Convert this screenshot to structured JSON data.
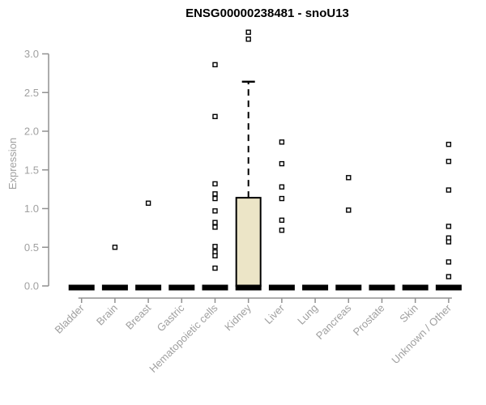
{
  "page": {
    "title": "ENSG00000238481 - snoU13"
  },
  "chart_data": {
    "type": "boxplot",
    "title": "ENSG00000238481 - snoU13",
    "xlabel": "",
    "ylabel": "Expression",
    "ylim": [
      0,
      3.3
    ],
    "yticks": [
      "0.0",
      "0.5",
      "1.0",
      "1.5",
      "2.0",
      "2.5",
      "3.0"
    ],
    "grid": false,
    "legend": "none",
    "categories": [
      "Bladder",
      "Brain",
      "Breast",
      "Gastric",
      "Hematopoietic cells",
      "Kidney",
      "Liver",
      "Lung",
      "Pancreas",
      "Prostate",
      "Skin",
      "Unknown / Other"
    ],
    "boxes": [
      {
        "category": "Bladder",
        "q1": 0,
        "median": 0,
        "q3": 0,
        "whisker_low": 0,
        "whisker_high": 0,
        "outliers": []
      },
      {
        "category": "Brain",
        "q1": 0,
        "median": 0,
        "q3": 0,
        "whisker_low": 0,
        "whisker_high": 0,
        "outliers": [
          0.5
        ]
      },
      {
        "category": "Breast",
        "q1": 0,
        "median": 0,
        "q3": 0,
        "whisker_low": 0,
        "whisker_high": 0,
        "outliers": [
          1.07
        ]
      },
      {
        "category": "Gastric",
        "q1": 0,
        "median": 0,
        "q3": 0,
        "whisker_low": 0,
        "whisker_high": 0,
        "outliers": []
      },
      {
        "category": "Hematopoietic cells",
        "q1": 0,
        "median": 0,
        "q3": 0,
        "whisker_low": 0,
        "whisker_high": 0,
        "outliers": [
          2.86,
          2.19,
          1.32,
          1.19,
          1.13,
          0.97,
          0.82,
          0.76,
          0.51,
          0.44,
          0.39,
          0.23
        ]
      },
      {
        "category": "Kidney",
        "q1": 0,
        "median": 0,
        "q3": 1.14,
        "whisker_low": 0,
        "whisker_high": 2.64,
        "outliers": [
          3.28,
          3.19
        ]
      },
      {
        "category": "Liver",
        "q1": 0,
        "median": 0,
        "q3": 0,
        "whisker_low": 0,
        "whisker_high": 0,
        "outliers": [
          1.86,
          1.58,
          1.28,
          1.13,
          0.85,
          0.72
        ]
      },
      {
        "category": "Lung",
        "q1": 0,
        "median": 0,
        "q3": 0,
        "whisker_low": 0,
        "whisker_high": 0,
        "outliers": []
      },
      {
        "category": "Pancreas",
        "q1": 0,
        "median": 0,
        "q3": 0,
        "whisker_low": 0,
        "whisker_high": 0,
        "outliers": [
          1.4,
          0.98
        ]
      },
      {
        "category": "Prostate",
        "q1": 0,
        "median": 0,
        "q3": 0,
        "whisker_low": 0,
        "whisker_high": 0,
        "outliers": []
      },
      {
        "category": "Skin",
        "q1": 0,
        "median": 0,
        "q3": 0,
        "whisker_low": 0,
        "whisker_high": 0,
        "outliers": []
      },
      {
        "category": "Unknown / Other",
        "q1": 0,
        "median": 0,
        "q3": 0,
        "whisker_low": 0,
        "whisker_high": 0,
        "outliers": [
          1.83,
          1.61,
          1.24,
          0.77,
          0.62,
          0.57,
          0.31,
          0.12
        ]
      }
    ],
    "colors": {
      "box_fill": "#ece5c7",
      "box_border": "#000000",
      "median": "#000000",
      "axis": "#919191",
      "tick_label": "#a0a0a0",
      "title": "#000000",
      "outlier_stroke": "#000000",
      "outlier_fill": "#ffffff"
    }
  }
}
